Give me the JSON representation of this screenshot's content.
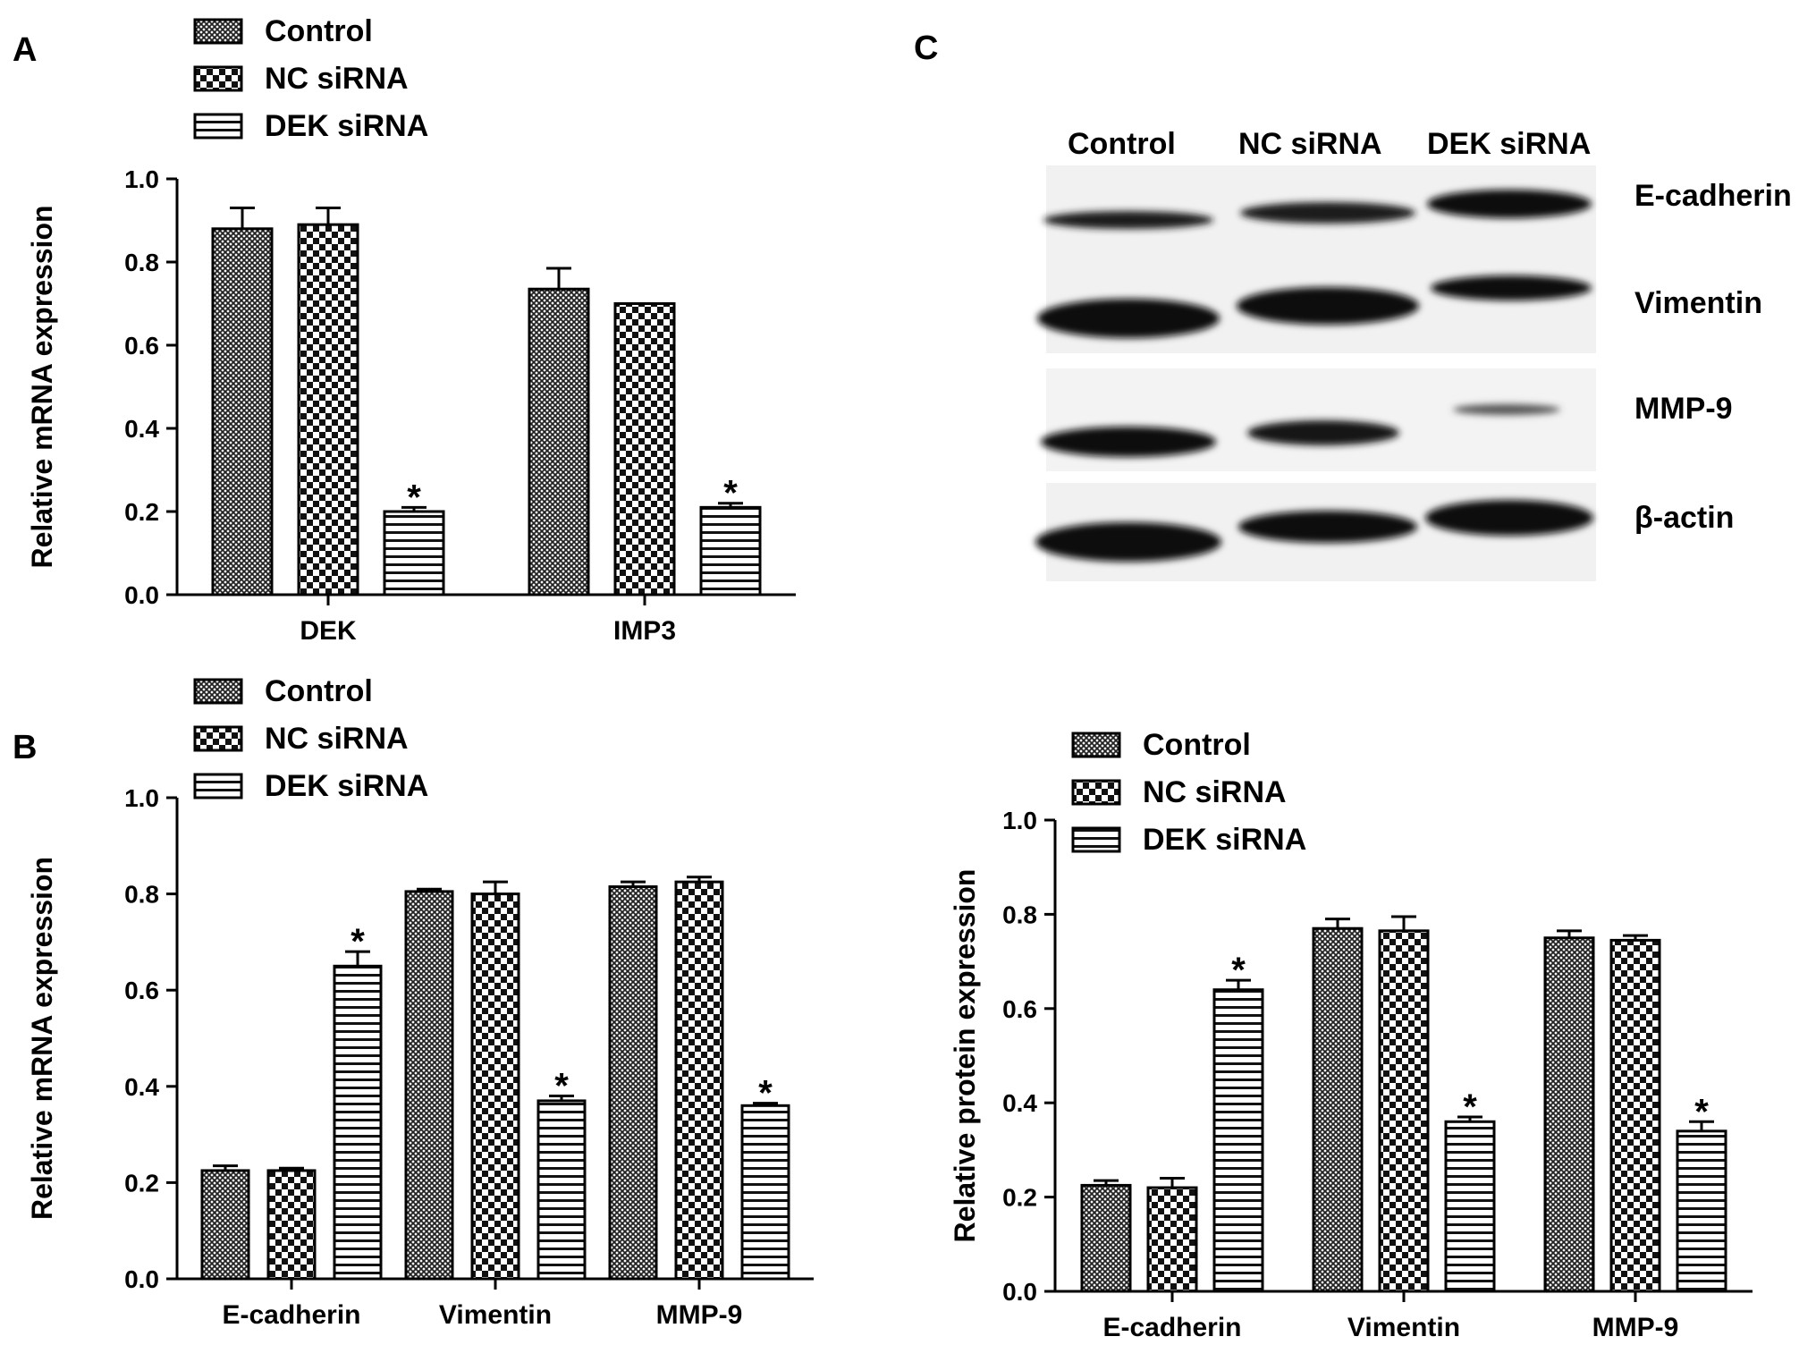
{
  "chart_data": [
    {
      "type": "bar",
      "panel": "A",
      "ylabel": "Relative mRNA expression",
      "ylim": [
        0,
        1.0
      ],
      "yticks": [
        "0.0",
        "0.2",
        "0.4",
        "0.6",
        "0.8",
        "1.0"
      ],
      "categories": [
        "DEK",
        "IMP3"
      ],
      "legend": [
        "Control",
        "NC siRNA",
        "DEK siRNA"
      ],
      "series": [
        {
          "name": "Control",
          "values": [
            0.88,
            0.735
          ],
          "errors": [
            0.05,
            0.05
          ]
        },
        {
          "name": "NC siRNA",
          "values": [
            0.89,
            0.7
          ],
          "errors": [
            0.04,
            0.0
          ]
        },
        {
          "name": "DEK siRNA",
          "values": [
            0.2,
            0.21
          ],
          "errors": [
            0.01,
            0.01
          ]
        }
      ],
      "annotations": [
        "*",
        "*"
      ]
    },
    {
      "type": "bar",
      "panel": "B",
      "ylabel": "Relative mRNA expression",
      "ylim": [
        0,
        1.0
      ],
      "yticks": [
        "0.0",
        "0.2",
        "0.4",
        "0.6",
        "0.8",
        "1.0"
      ],
      "categories": [
        "E-cadherin",
        "Vimentin",
        "MMP-9"
      ],
      "legend": [
        "Control",
        "NC siRNA",
        "DEK siRNA"
      ],
      "series": [
        {
          "name": "Control",
          "values": [
            0.225,
            0.805,
            0.815
          ],
          "errors": [
            0.01,
            0.005,
            0.01
          ]
        },
        {
          "name": "NC siRNA",
          "values": [
            0.225,
            0.8,
            0.825
          ],
          "errors": [
            0.005,
            0.025,
            0.01
          ]
        },
        {
          "name": "DEK siRNA",
          "values": [
            0.65,
            0.37,
            0.36
          ],
          "errors": [
            0.03,
            0.01,
            0.005
          ]
        }
      ],
      "annotations": [
        "*",
        "*",
        "*"
      ]
    },
    {
      "type": "bar",
      "panel": "C",
      "ylabel": "Relative protein expression",
      "ylim": [
        0,
        1.0
      ],
      "yticks": [
        "0.0",
        "0.2",
        "0.4",
        "0.6",
        "0.8",
        "1.0"
      ],
      "categories": [
        "E-cadherin",
        "Vimentin",
        "MMP-9"
      ],
      "legend": [
        "Control",
        "NC siRNA",
        "DEK siRNA"
      ],
      "series": [
        {
          "name": "Control",
          "values": [
            0.225,
            0.77,
            0.75
          ],
          "errors": [
            0.01,
            0.02,
            0.015
          ]
        },
        {
          "name": "NC siRNA",
          "values": [
            0.22,
            0.765,
            0.745
          ],
          "errors": [
            0.02,
            0.03,
            0.01
          ]
        },
        {
          "name": "DEK siRNA",
          "values": [
            0.64,
            0.36,
            0.34
          ],
          "errors": [
            0.02,
            0.01,
            0.02
          ]
        }
      ],
      "annotations": [
        "*",
        "*",
        "*"
      ]
    }
  ],
  "panel_labels": {
    "a": "A",
    "b": "B",
    "c": "C"
  },
  "blot": {
    "lanes": [
      "Control",
      "NC siRNA",
      "DEK siRNA"
    ],
    "proteins": [
      "E-cadherin",
      "Vimentin",
      "MMP-9",
      "β-actin"
    ]
  }
}
